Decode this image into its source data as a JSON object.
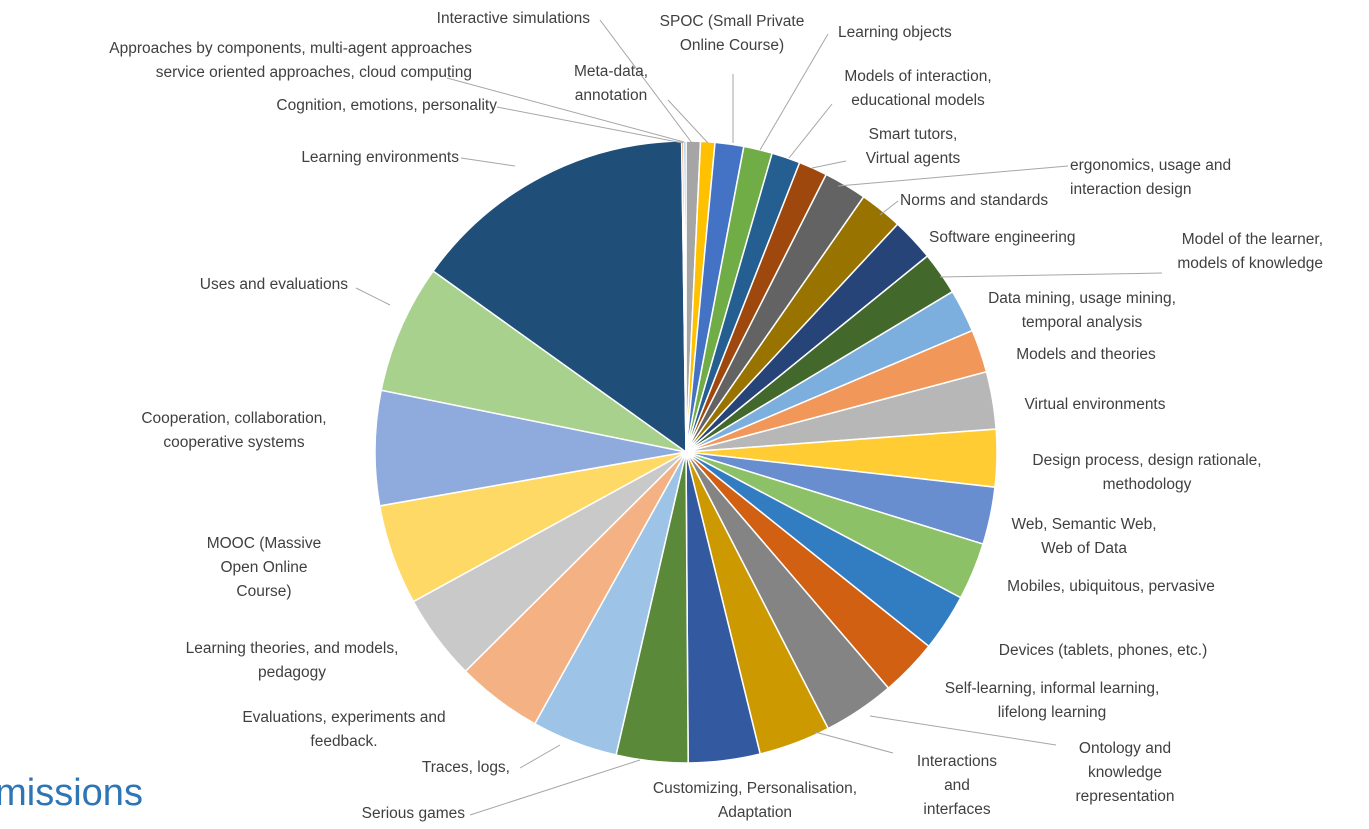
{
  "page": {
    "title": "bmissions"
  },
  "chart_data": {
    "type": "pie",
    "title": "",
    "legend": "none",
    "slices": [
      {
        "label": "Interactive simulations",
        "value": 1,
        "color": "#a5a5a5"
      },
      {
        "label": "Meta-data, annotation",
        "value": 1,
        "color": "#ffc000"
      },
      {
        "label": "SPOC (Small Private Online Course)",
        "value": 2,
        "color": "#4472c4"
      },
      {
        "label": "Learning objects",
        "value": 2,
        "color": "#70ad47"
      },
      {
        "label": "Models of interaction, educational models",
        "value": 2,
        "color": "#255e91"
      },
      {
        "label": "Smart tutors, Virtual agents",
        "value": 2,
        "color": "#9e480e"
      },
      {
        "label": "ergonomics, usage and interaction design",
        "value": 3,
        "color": "#636363"
      },
      {
        "label": "Norms and standards",
        "value": 3,
        "color": "#997300"
      },
      {
        "label": "Software engineering",
        "value": 3,
        "color": "#264478"
      },
      {
        "label": "Model of the learner, models of knowledge",
        "value": 3,
        "color": "#43682b"
      },
      {
        "label": "Data mining, usage mining, temporal analysis",
        "value": 3,
        "color": "#7cafdd"
      },
      {
        "label": "Models and theories",
        "value": 3,
        "color": "#f1975a"
      },
      {
        "label": "Virtual environments",
        "value": 4,
        "color": "#b7b7b7"
      },
      {
        "label": "Design process, design rationale, methodology",
        "value": 4,
        "color": "#ffcd33"
      },
      {
        "label": "Web, Semantic Web, Web of Data",
        "value": 4,
        "color": "#698ed0"
      },
      {
        "label": "Mobiles, ubiquitous, pervasive",
        "value": 4,
        "color": "#8cc168"
      },
      {
        "label": "Devices (tablets, phones, etc.)",
        "value": 4,
        "color": "#327dc2"
      },
      {
        "label": "Self-learning, informal learning, lifelong learning",
        "value": 4,
        "color": "#d26012"
      },
      {
        "label": "Ontology and knowledge representation",
        "value": 5,
        "color": "#848484"
      },
      {
        "label": "Interactions and interfaces",
        "value": 5,
        "color": "#cc9a00"
      },
      {
        "label": "Customizing, Personalisation, Adaptation",
        "value": 5,
        "color": "#335aa1"
      },
      {
        "label": "Serious games",
        "value": 5,
        "color": "#5a8a39"
      },
      {
        "label": "Traces, logs,",
        "value": 6,
        "color": "#9dc3e6"
      },
      {
        "label": "Evaluations, experiments and feedback.",
        "value": 6,
        "color": "#f4b183"
      },
      {
        "label": "Learning theories, and models, pedagogy",
        "value": 6,
        "color": "#c9c9c9"
      },
      {
        "label": "MOOC (Massive Open Online Course)",
        "value": 7,
        "color": "#ffd966"
      },
      {
        "label": "Cooperation, collaboration, cooperative systems",
        "value": 8,
        "color": "#8faadc"
      },
      {
        "label": "Uses and evaluations",
        "value": 9,
        "color": "#a9d18e"
      },
      {
        "label": "Learning environments",
        "value": 20,
        "color": "#1f4e79"
      },
      {
        "label": "Cognition, emotions, personality",
        "value": 0.15,
        "color": "#ed7d31"
      },
      {
        "label": "Approaches by components, multi-agent approaches service oriented approaches, cloud computing",
        "value": 0.15,
        "color": "#5b9bd5"
      }
    ],
    "label_lines": [
      [
        "Interactive simulations"
      ],
      [
        "Meta-data,",
        "annotation"
      ],
      [
        "SPOC (Small Private",
        "Online Course)"
      ],
      [
        "Learning objects"
      ],
      [
        "Models of interaction,",
        "educational models"
      ],
      [
        "Smart tutors,",
        "Virtual agents"
      ],
      [
        "ergonomics, usage and",
        "interaction design"
      ],
      [
        "Norms and standards"
      ],
      [
        "Software engineering"
      ],
      [
        "Model of the learner,",
        "models of knowledge"
      ],
      [
        "Data mining, usage mining,",
        "temporal analysis"
      ],
      [
        "Models and theories"
      ],
      [
        "Virtual environments"
      ],
      [
        "Design process, design rationale,",
        "methodology"
      ],
      [
        "Web, Semantic Web,",
        "Web of Data"
      ],
      [
        "Mobiles, ubiquitous, pervasive"
      ],
      [
        "Devices (tablets, phones, etc.)"
      ],
      [
        "Self-learning, informal learning,",
        "lifelong learning"
      ],
      [
        "Ontology and",
        "knowledge",
        "representation"
      ],
      [
        "Interactions",
        "and",
        "interfaces"
      ],
      [
        "Customizing, Personalisation,",
        "Adaptation"
      ],
      [
        "Serious games"
      ],
      [
        "Traces, logs,"
      ],
      [
        "Evaluations, experiments and",
        "feedback."
      ],
      [
        "Learning theories, and models,",
        "pedagogy"
      ],
      [
        "MOOC (Massive",
        "Open Online",
        "Course)"
      ],
      [
        "Cooperation, collaboration,",
        "cooperative systems"
      ],
      [
        "Uses and evaluations"
      ],
      [
        "Learning environments"
      ],
      [
        "Cognition, emotions, personality"
      ],
      [
        "Approaches by components, multi-agent approaches",
        "service oriented approaches, cloud computing"
      ]
    ]
  }
}
